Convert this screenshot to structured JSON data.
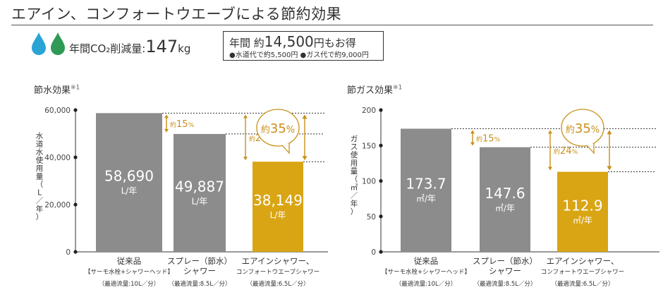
{
  "header": {
    "title": "エアイン、コンフォートウエーブによる節約効果",
    "co2_label": "年間CO₂削減量:",
    "co2_value": "147",
    "co2_unit": "kg"
  },
  "savings": {
    "prefix": "年間 約",
    "amount": "14,500",
    "suffix": "円もお得",
    "water_note": "●水道代で約5,500円",
    "gas_note": "●ガス代で約9,000円"
  },
  "colors": {
    "gray_bar": "#8c8c8c",
    "gold_bar": "#d9a514",
    "accent": "#c8901a",
    "drop_blue": "#2aa4d4",
    "drop_green": "#2e9a55"
  },
  "chart_data": [
    {
      "type": "bar",
      "title": "節水効果",
      "title_note": "※1",
      "ylabel": "水道水使用量（L／年）",
      "ylim": [
        0,
        60000
      ],
      "yticks": [
        "0",
        "20,000",
        "40,000",
        "60,000"
      ],
      "ytick_values": [
        0,
        20000,
        40000,
        60000
      ],
      "values": [
        58690,
        49887,
        38149
      ],
      "value_labels": [
        "58,690",
        "49,887",
        "38,149"
      ],
      "unit": "L/年",
      "categories": [
        {
          "name": "従来品",
          "sub": "【サーモ水栓+シャワーヘッド】",
          "flow": "（最適流量:10L／分）"
        },
        {
          "name": "スプレー（節水）",
          "sub": "シャワー",
          "flow": "（最適流量:8.5L／分）"
        },
        {
          "name": "エアインシャワー、",
          "sub": "コンフォートウエーブシャワー",
          "flow": "（最適流量:6.5L／分）"
        }
      ],
      "highlight_index": 2,
      "reductions": [
        {
          "prefix": "約",
          "value": "15",
          "unit": "%"
        },
        {
          "prefix": "約",
          "value": "24",
          "unit": "%"
        }
      ],
      "total_reduction": {
        "prefix": "約",
        "value": "35",
        "unit": "%"
      }
    },
    {
      "type": "bar",
      "title": "節ガス効果",
      "title_note": "※1",
      "ylabel": "ガス使用量（㎥／年）",
      "ylim": [
        0,
        200
      ],
      "yticks": [
        "0",
        "50",
        "100",
        "150",
        "200"
      ],
      "ytick_values": [
        0,
        50,
        100,
        150,
        200
      ],
      "values": [
        173.7,
        147.6,
        112.9
      ],
      "value_labels": [
        "173.7",
        "147.6",
        "112.9"
      ],
      "unit": "㎥/年",
      "categories": [
        {
          "name": "従来品",
          "sub": "【サーモ水栓+シャワーヘッド】",
          "flow": "（最適流量:10L／分）"
        },
        {
          "name": "スプレー（節水）",
          "sub": "シャワー",
          "flow": "（最適流量:8.5L／分）"
        },
        {
          "name": "エアインシャワー、",
          "sub": "コンフォートウエーブシャワー",
          "flow": "（最適流量:6.5L／分）"
        }
      ],
      "highlight_index": 2,
      "reductions": [
        {
          "prefix": "約",
          "value": "15",
          "unit": "%"
        },
        {
          "prefix": "約",
          "value": "24",
          "unit": "%"
        }
      ],
      "total_reduction": {
        "prefix": "約",
        "value": "35",
        "unit": "%"
      }
    }
  ]
}
